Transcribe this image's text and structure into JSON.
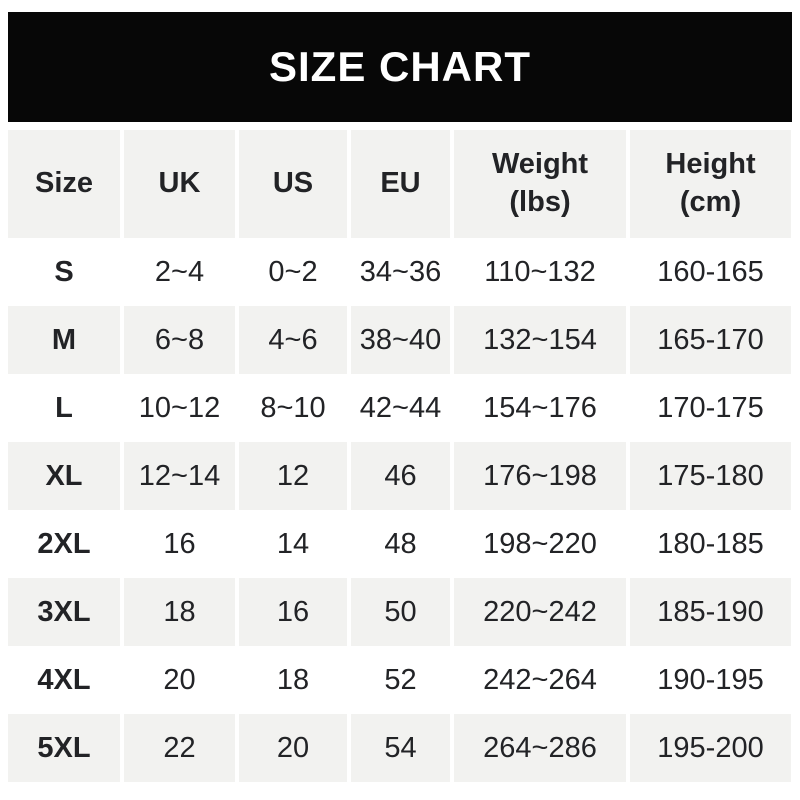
{
  "banner": {
    "title": "SIZE CHART",
    "bg_color": "#070707",
    "text_color": "#ffffff"
  },
  "colors": {
    "row_alt_bg": "#f2f2f0",
    "page_bg": "#ffffff",
    "table_text": "#222326"
  },
  "header_display": [
    "Size",
    "UK",
    "US",
    "EU",
    "Weight\n(lbs)",
    "Height\n(cm)"
  ],
  "chart_data": {
    "type": "table",
    "title": "SIZE CHART",
    "columns": [
      "Size",
      "UK",
      "US",
      "EU",
      "Weight (lbs)",
      "Height (cm)"
    ],
    "rows": [
      [
        "S",
        "2~4",
        "0~2",
        "34~36",
        "110~132",
        "160-165"
      ],
      [
        "M",
        "6~8",
        "4~6",
        "38~40",
        "132~154",
        "165-170"
      ],
      [
        "L",
        "10~12",
        "8~10",
        "42~44",
        "154~176",
        "170-175"
      ],
      [
        "XL",
        "12~14",
        "12",
        "46",
        "176~198",
        "175-180"
      ],
      [
        "2XL",
        "16",
        "14",
        "48",
        "198~220",
        "180-185"
      ],
      [
        "3XL",
        "18",
        "16",
        "50",
        "220~242",
        "185-190"
      ],
      [
        "4XL",
        "20",
        "18",
        "52",
        "242~264",
        "190-195"
      ],
      [
        "5XL",
        "22",
        "20",
        "54",
        "264~286",
        "195-200"
      ]
    ]
  }
}
